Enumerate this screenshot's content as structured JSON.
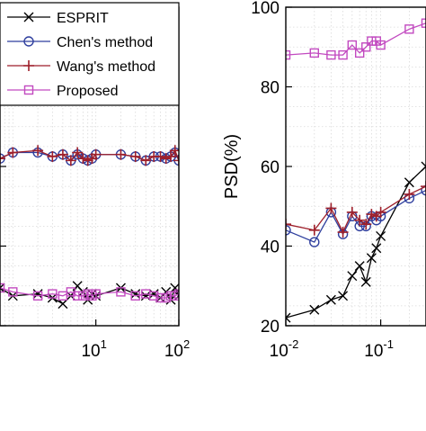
{
  "chart_data": [
    {
      "type": "line",
      "title": "",
      "xlabel": "",
      "ylabel": "",
      "x_scale": "log",
      "xlim": [
        0.7,
        100
      ],
      "ylim": [
        20,
        100
      ],
      "grid": true,
      "legend_position": "top-right",
      "x_ticks": [
        {
          "value": 10,
          "base": "10",
          "exp": "1"
        },
        {
          "value": 100,
          "base": "10",
          "exp": "2"
        }
      ],
      "series": [
        {
          "name": "ESPRIT",
          "color": "#000000",
          "marker": "x",
          "x": [
            0.7,
            1,
            2,
            3,
            4,
            5,
            6,
            7,
            8,
            9,
            10,
            20,
            30,
            40,
            50,
            60,
            70,
            80,
            90,
            100
          ],
          "y": [
            29.5,
            27.5,
            28,
            27,
            25.5,
            27.5,
            30,
            28.5,
            26.5,
            28,
            27.5,
            29.5,
            28,
            27.5,
            28,
            27,
            28.5,
            26.5,
            29.5,
            27.5
          ]
        },
        {
          "name": "Chen's method",
          "color": "#2f3f9e",
          "marker": "o",
          "x": [
            0.7,
            1,
            2,
            3,
            4,
            5,
            6,
            7,
            8,
            9,
            10,
            20,
            30,
            40,
            50,
            60,
            70,
            80,
            90,
            100
          ],
          "y": [
            62,
            63.5,
            63.5,
            62.5,
            63,
            61.5,
            63,
            62,
            61.5,
            62,
            63,
            63,
            62.5,
            61.5,
            62.5,
            62.5,
            62,
            62.5,
            63.5,
            61.5
          ]
        },
        {
          "name": "Wang's method",
          "color": "#9e1f2a",
          "marker": "+",
          "x": [
            0.7,
            1,
            2,
            3,
            4,
            5,
            6,
            7,
            8,
            9,
            10,
            20,
            30,
            40,
            50,
            60,
            70,
            80,
            90,
            100
          ],
          "y": [
            62,
            63.5,
            64,
            62.5,
            63,
            61.5,
            63.5,
            62,
            61.5,
            62,
            63,
            63,
            62.5,
            61.5,
            62.5,
            62.5,
            62,
            62.5,
            64,
            61.5
          ]
        },
        {
          "name": "Proposed",
          "color": "#c24ac0",
          "marker": "s",
          "x": [
            0.7,
            1,
            2,
            3,
            4,
            5,
            6,
            7,
            8,
            9,
            10,
            20,
            30,
            40,
            50,
            60,
            70,
            80,
            90,
            100
          ],
          "y": [
            29.5,
            28.5,
            27.5,
            28,
            27.5,
            28.5,
            27.5,
            27.5,
            28,
            27.5,
            28,
            28.5,
            27.5,
            28,
            27.5,
            27,
            27,
            27.5,
            27.5,
            28
          ]
        }
      ]
    },
    {
      "type": "line",
      "title": "",
      "xlabel": "",
      "ylabel": "PSD(%)",
      "x_scale": "log",
      "xlim": [
        0.01,
        0.3
      ],
      "ylim": [
        20,
        100
      ],
      "grid": true,
      "y_ticks": [
        {
          "value": 20,
          "label": "20"
        },
        {
          "value": 40,
          "label": "40"
        },
        {
          "value": 60,
          "label": "60"
        },
        {
          "value": 80,
          "label": "80"
        },
        {
          "value": 100,
          "label": "100"
        }
      ],
      "x_ticks": [
        {
          "value": 0.01,
          "base": "10",
          "exp": "-2"
        },
        {
          "value": 0.1,
          "base": "10",
          "exp": "-1"
        }
      ],
      "series": [
        {
          "name": "ESPRIT",
          "color": "#000000",
          "marker": "x",
          "x": [
            0.01,
            0.02,
            0.03,
            0.04,
            0.05,
            0.06,
            0.07,
            0.08,
            0.09,
            0.1,
            0.2,
            0.3
          ],
          "y": [
            22,
            24,
            26.5,
            27.5,
            32.5,
            35,
            31,
            37,
            39.5,
            42.5,
            56,
            60
          ]
        },
        {
          "name": "Chen's method",
          "color": "#2f3f9e",
          "marker": "o",
          "x": [
            0.01,
            0.02,
            0.03,
            0.04,
            0.05,
            0.06,
            0.07,
            0.08,
            0.09,
            0.1,
            0.2,
            0.3
          ],
          "y": [
            44,
            41,
            48.5,
            43,
            47.5,
            45,
            45,
            47.5,
            46.5,
            47.5,
            52,
            54
          ]
        },
        {
          "name": "Wang's method",
          "color": "#9e1f2a",
          "marker": "+",
          "x": [
            0.01,
            0.02,
            0.03,
            0.04,
            0.05,
            0.06,
            0.07,
            0.08,
            0.09,
            0.1,
            0.2,
            0.3
          ],
          "y": [
            45.5,
            44,
            49.5,
            43.5,
            48.5,
            46.5,
            45.5,
            48,
            47.5,
            48.5,
            53,
            55
          ]
        },
        {
          "name": "Proposed",
          "color": "#c24ac0",
          "marker": "s",
          "x": [
            0.01,
            0.02,
            0.03,
            0.04,
            0.05,
            0.06,
            0.07,
            0.08,
            0.09,
            0.1,
            0.2,
            0.3
          ],
          "y": [
            88,
            88.5,
            88,
            88,
            90.5,
            88.5,
            90,
            91.5,
            91.5,
            90.5,
            94.5,
            96
          ]
        }
      ]
    }
  ]
}
